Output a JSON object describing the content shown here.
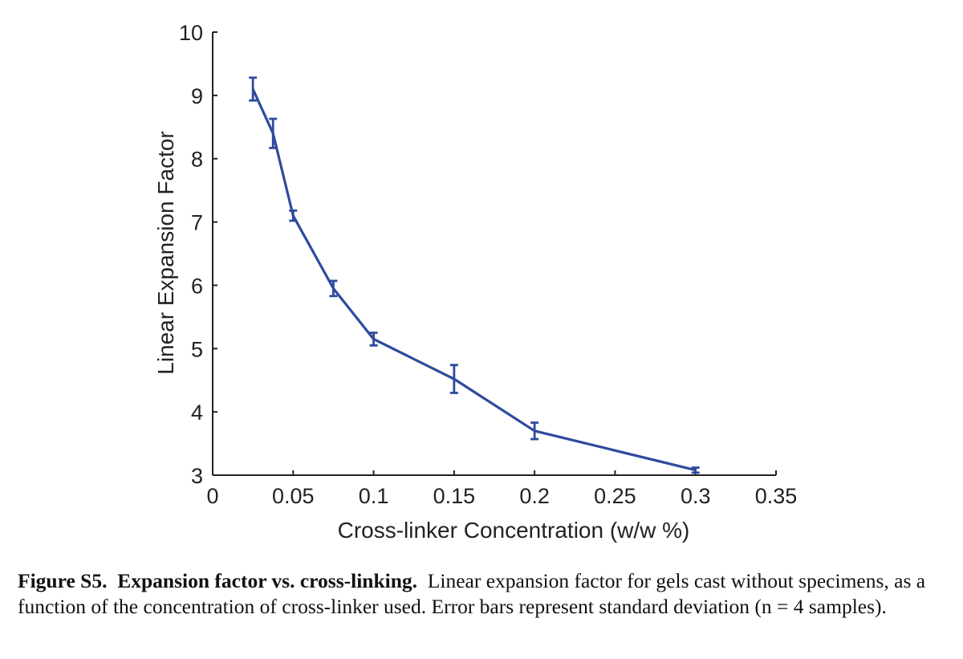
{
  "chart_data": {
    "type": "line",
    "xlabel": "Cross-linker Concentration (w/w %)",
    "ylabel": "Linear Expansion Factor",
    "xlim": [
      0,
      0.35
    ],
    "ylim": [
      3,
      10
    ],
    "x_ticks": [
      "0",
      "0.05",
      "0.1",
      "0.15",
      "0.2",
      "0.25",
      "0.3",
      "0.35"
    ],
    "y_ticks": [
      "3",
      "4",
      "5",
      "6",
      "7",
      "8",
      "9",
      "10"
    ],
    "grid": false,
    "line_color": "#2e4a9e",
    "series": [
      {
        "x": [
          0.025,
          0.0375,
          0.05,
          0.075,
          0.1,
          0.15,
          0.2,
          0.3
        ],
        "y": [
          9.1,
          8.4,
          7.1,
          5.95,
          5.15,
          4.52,
          3.7,
          3.08
        ],
        "error": [
          0.18,
          0.23,
          0.08,
          0.12,
          0.1,
          0.22,
          0.13,
          0.04
        ]
      }
    ]
  },
  "caption": {
    "label": "Figure S5.",
    "heading": "Expansion factor vs. cross-linking.",
    "text": "Linear expansion factor for gels cast without specimens, as a function of the concentration of cross-linker used. Error bars represent standard deviation (n = 4 samples)."
  }
}
